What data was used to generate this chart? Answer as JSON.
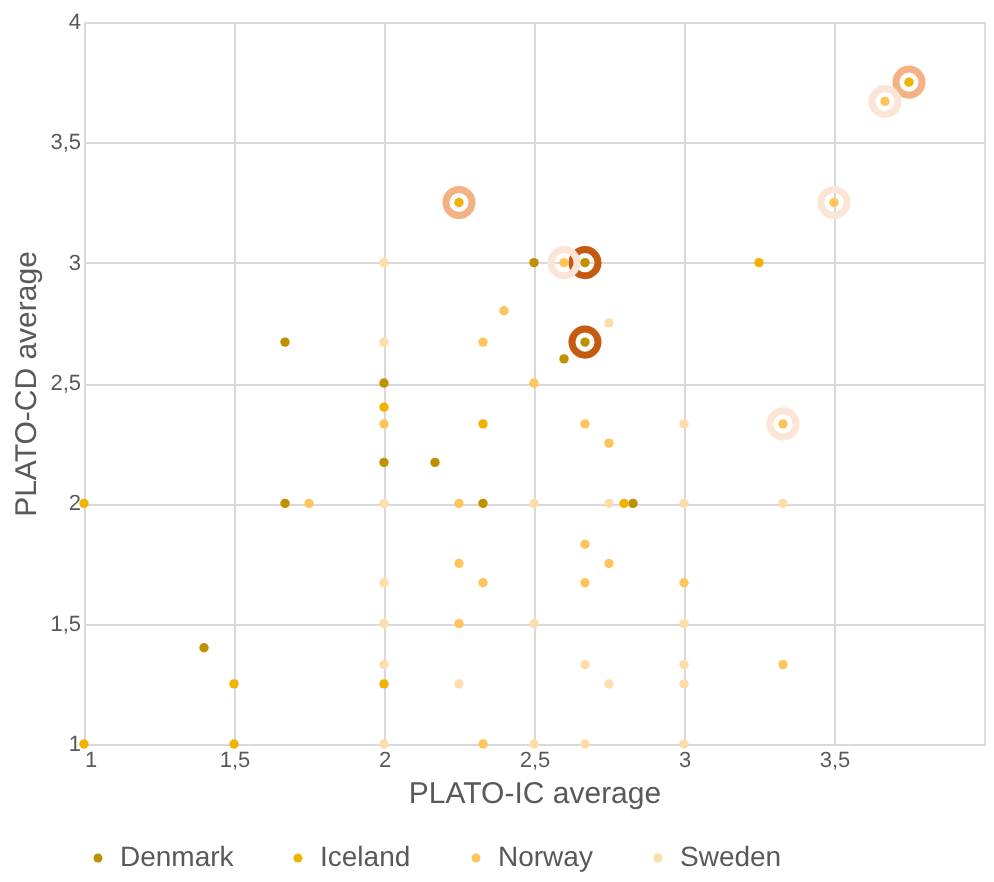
{
  "chart_data": {
    "type": "scatter",
    "xlabel": "PLATO-IC average",
    "ylabel": "PLATO-CD average",
    "xlim": [
      1,
      4
    ],
    "ylim": [
      1,
      4
    ],
    "xticks": [
      1,
      {
        "value": 1.5,
        "label": "1,5"
      },
      2,
      {
        "value": 2.5,
        "label": "2,5"
      },
      3,
      {
        "value": 3.5,
        "label": "3,5"
      }
    ],
    "yticks": [
      1,
      {
        "value": 1.5,
        "label": "1,5"
      },
      2,
      {
        "value": 2.5,
        "label": "2,5"
      },
      3,
      {
        "value": 3.5,
        "label": "3,5"
      },
      4
    ],
    "grid": true,
    "legend": "bottom",
    "marker": "circle",
    "series": [
      {
        "color": "#c55a11",
        "x": [
          2.67,
          2.67
        ],
        "values": [
          3,
          2.67
        ]
      },
      {
        "color": "#f4b183",
        "x": [
          2.25,
          3.75
        ],
        "values": [
          3.25,
          3.75
        ]
      },
      {
        "color": "#fbe5d6",
        "x": [
          3.67,
          3.5,
          2.6,
          3.33
        ],
        "values": [
          3.67,
          3.25,
          3,
          2.33
        ]
      },
      {
        "name": "Denmark",
        "color": "#bf9000",
        "x": [
          1.67,
          2,
          2,
          2.17,
          1.67,
          2.33,
          1.4,
          2.5,
          2.67,
          2.67,
          2.6,
          2.83
        ],
        "values": [
          2.67,
          2.5,
          2.17,
          2.17,
          2,
          2,
          1.4,
          3,
          3,
          2.67,
          2.6,
          2
        ]
      },
      {
        "name": "Iceland",
        "color": "#f2b200",
        "x": [
          2.25,
          3.75,
          2,
          2.33,
          1,
          1.5,
          2,
          1,
          1.5,
          3.25,
          2.8
        ],
        "values": [
          3.25,
          3.75,
          2.4,
          2.33,
          2,
          1.25,
          1.25,
          1,
          1,
          3,
          2
        ]
      },
      {
        "name": "Norway",
        "color": "#ffc55c",
        "x": [
          2.4,
          2.33,
          2,
          1.75,
          2.25,
          2.25,
          2.33,
          2.25,
          2.33,
          3.67,
          3.5,
          2.6,
          2.5,
          2.67,
          3.33,
          2.75,
          2.67,
          2.75,
          2.67,
          3,
          3.33
        ],
        "values": [
          2.8,
          2.67,
          2.33,
          2,
          2,
          1.75,
          1.67,
          1.5,
          1,
          3.67,
          3.25,
          3,
          2.5,
          2.33,
          2.33,
          2.25,
          1.83,
          1.75,
          1.67,
          1.67,
          1.33
        ]
      },
      {
        "name": "Sweden",
        "color": "#ffddab",
        "x": [
          2,
          2,
          2,
          2,
          2,
          2,
          2.25,
          2,
          2.75,
          3,
          2.5,
          2.75,
          3,
          3.33,
          2.5,
          3,
          2.67,
          3,
          2.75,
          3,
          2.5,
          2.67,
          3
        ],
        "values": [
          3,
          2.67,
          2,
          1.67,
          1.5,
          1.33,
          1.25,
          1,
          2.75,
          2.33,
          2,
          2,
          2,
          2,
          1.5,
          1.5,
          1.33,
          1.33,
          1.25,
          1.25,
          1,
          1,
          1
        ]
      }
    ]
  }
}
